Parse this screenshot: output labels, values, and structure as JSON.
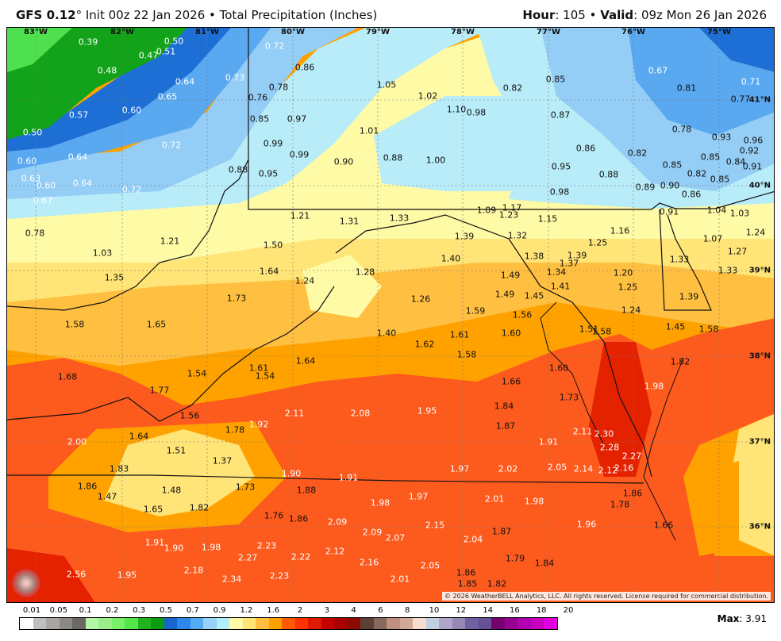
{
  "header": {
    "model": "GFS 0.12",
    "degree": "°",
    "init": " Init 00z 22 Jan 2026 • Total Precipitation (Inches)",
    "hour_label": "Hour",
    "hour": ": 105 • ",
    "valid_label": "Valid",
    "valid": ": 09z Mon 26 Jan 2026"
  },
  "longitudes": [
    "83°W",
    "82°W",
    "81°W",
    "80°W",
    "79°W",
    "78°W",
    "77°W",
    "76°W",
    "75°W"
  ],
  "latitudes": [
    "41°N",
    "40°N",
    "39°N",
    "38°N",
    "37°N",
    "36°N"
  ],
  "values": [
    "0.39",
    "0.50",
    "0.47",
    "0.51",
    "0.72",
    "0.86",
    "0.48",
    "0.64",
    "0.73",
    "0.78",
    "0.76",
    "1.05",
    "1.02",
    "0.82",
    "0.85",
    "0.67",
    "0.81",
    "0.71",
    "0.77",
    "0.57",
    "0.60",
    "0.65",
    "0.85",
    "0.97",
    "1.10",
    "0.98",
    "0.87",
    "0.78",
    "0.50",
    "1.01",
    "0.72",
    "0.99",
    "0.93",
    "0.96",
    "0.92",
    "0.86",
    "0.82",
    "0.64",
    "0.99",
    "0.90",
    "0.88",
    "1.00",
    "0.85",
    "0.85",
    "0.84",
    "0.91",
    "0.60",
    "0.95",
    "0.88",
    "0.82",
    "0.85",
    "0.88",
    "0.95",
    "0.63",
    "0.60",
    "0.64",
    "0.72",
    "0.89",
    "0.90",
    "0.86",
    "0.98",
    "0.67",
    "1.17",
    "1.09",
    "1.23",
    "1.15",
    "0.91",
    "1.04",
    "1.03",
    "1.21",
    "1.31",
    "1.33",
    "0.78",
    "1.39",
    "1.32",
    "1.16",
    "1.07",
    "1.24",
    "1.21",
    "1.50",
    "1.40",
    "1.38",
    "1.25",
    "1.39",
    "1.27",
    "1.33",
    "1.03",
    "1.64",
    "1.28",
    "1.49",
    "1.37",
    "1.34",
    "1.20",
    "1.33",
    "1.35",
    "1.24",
    "1.41",
    "1.25",
    "1.49",
    "1.45",
    "1.73",
    "1.26",
    "1.39",
    "1.24",
    "1.59",
    "1.56",
    "1.58",
    "1.65",
    "1.45",
    "1.58",
    "1.51",
    "1.58",
    "1.40",
    "1.61",
    "1.60",
    "1.62",
    "1.58",
    "1.64",
    "1.61",
    "1.54",
    "1.54",
    "1.82",
    "1.60",
    "1.68",
    "1.66",
    "1.98",
    "1.77",
    "1.73",
    "1.84",
    "2.11",
    "2.08",
    "1.95",
    "1.56",
    "1.92",
    "1.87",
    "1.78",
    "2.11",
    "2.30",
    "1.64",
    "2.00",
    "1.91",
    "2.28",
    "1.51",
    "2.27",
    "1.37",
    "1.83",
    "1.90",
    "1.97",
    "2.02",
    "2.05",
    "2.14",
    "2.12",
    "2.16",
    "1.91",
    "1.86",
    "1.73",
    "1.88",
    "1.86",
    "1.47",
    "1.48",
    "1.97",
    "2.01",
    "1.98",
    "1.78",
    "1.98",
    "1.65",
    "1.82",
    "1.76",
    "1.86",
    "2.09",
    "2.15",
    "1.96",
    "2.09",
    "2.07",
    "1.66",
    "1.87",
    "2.04",
    "1.91",
    "1.90",
    "1.98",
    "2.23",
    "2.12",
    "2.27",
    "2.22",
    "2.16",
    "1.79",
    "1.84",
    "2.05",
    "2.56",
    "1.95",
    "2.18",
    "2.34",
    "2.23",
    "1.86",
    "2.01",
    "1.85",
    "1.82"
  ],
  "copyright": "© 2026 WeatherBELL Analytics, LLC. All rights reserved. License required for commercial distribution.",
  "logo_text": "WeatherBELL",
  "legend": {
    "ticks": [
      "0.01",
      "0.05",
      "0.1",
      "0.2",
      "0.3",
      "0.5",
      "0.7",
      "0.9",
      "1.2",
      "1.6",
      "2",
      "3",
      "4",
      "6",
      "8",
      "10",
      "12",
      "14",
      "16",
      "18",
      "20"
    ],
    "colors": [
      "#ffffff",
      "#bfbfbf",
      "#a9a5a2",
      "#8c8886",
      "#6b6965",
      "#b3f7a8",
      "#99ee8a",
      "#79f06a",
      "#52e84a",
      "#20b421",
      "#0e9c12",
      "#1a64d0",
      "#2c88ec",
      "#56aaf2",
      "#99d2f8",
      "#b4ecf8",
      "#fff9a6",
      "#ffe577",
      "#ffc040",
      "#ffa200",
      "#ff5a00",
      "#ff3200",
      "#e01a00",
      "#c40000",
      "#a80000",
      "#8e0a00",
      "#5c4038",
      "#866a5c",
      "#bf9080",
      "#d4a896",
      "#f8dccf",
      "#c0d0e0",
      "#b0a6cc",
      "#9888b8",
      "#7060a4",
      "#685096",
      "#780070",
      "#960090",
      "#b000b0",
      "#c800c0",
      "#e000e0"
    ]
  },
  "max_label": "Max",
  "max_value": ": 3.91",
  "fill_colors": {
    "green_light": "#4fe04f",
    "green": "#13a31a",
    "blue_dark": "#1e6fd5",
    "blue": "#5aa8ef",
    "blue_light": "#94cdf5",
    "cyan_pale": "#b8ecf8",
    "yellow_pale": "#fffaa5",
    "yellow": "#ffe477",
    "orange_light": "#ffbf40",
    "orange": "#ffa200",
    "red_orange": "#fd5a1e",
    "red": "#e52200"
  }
}
